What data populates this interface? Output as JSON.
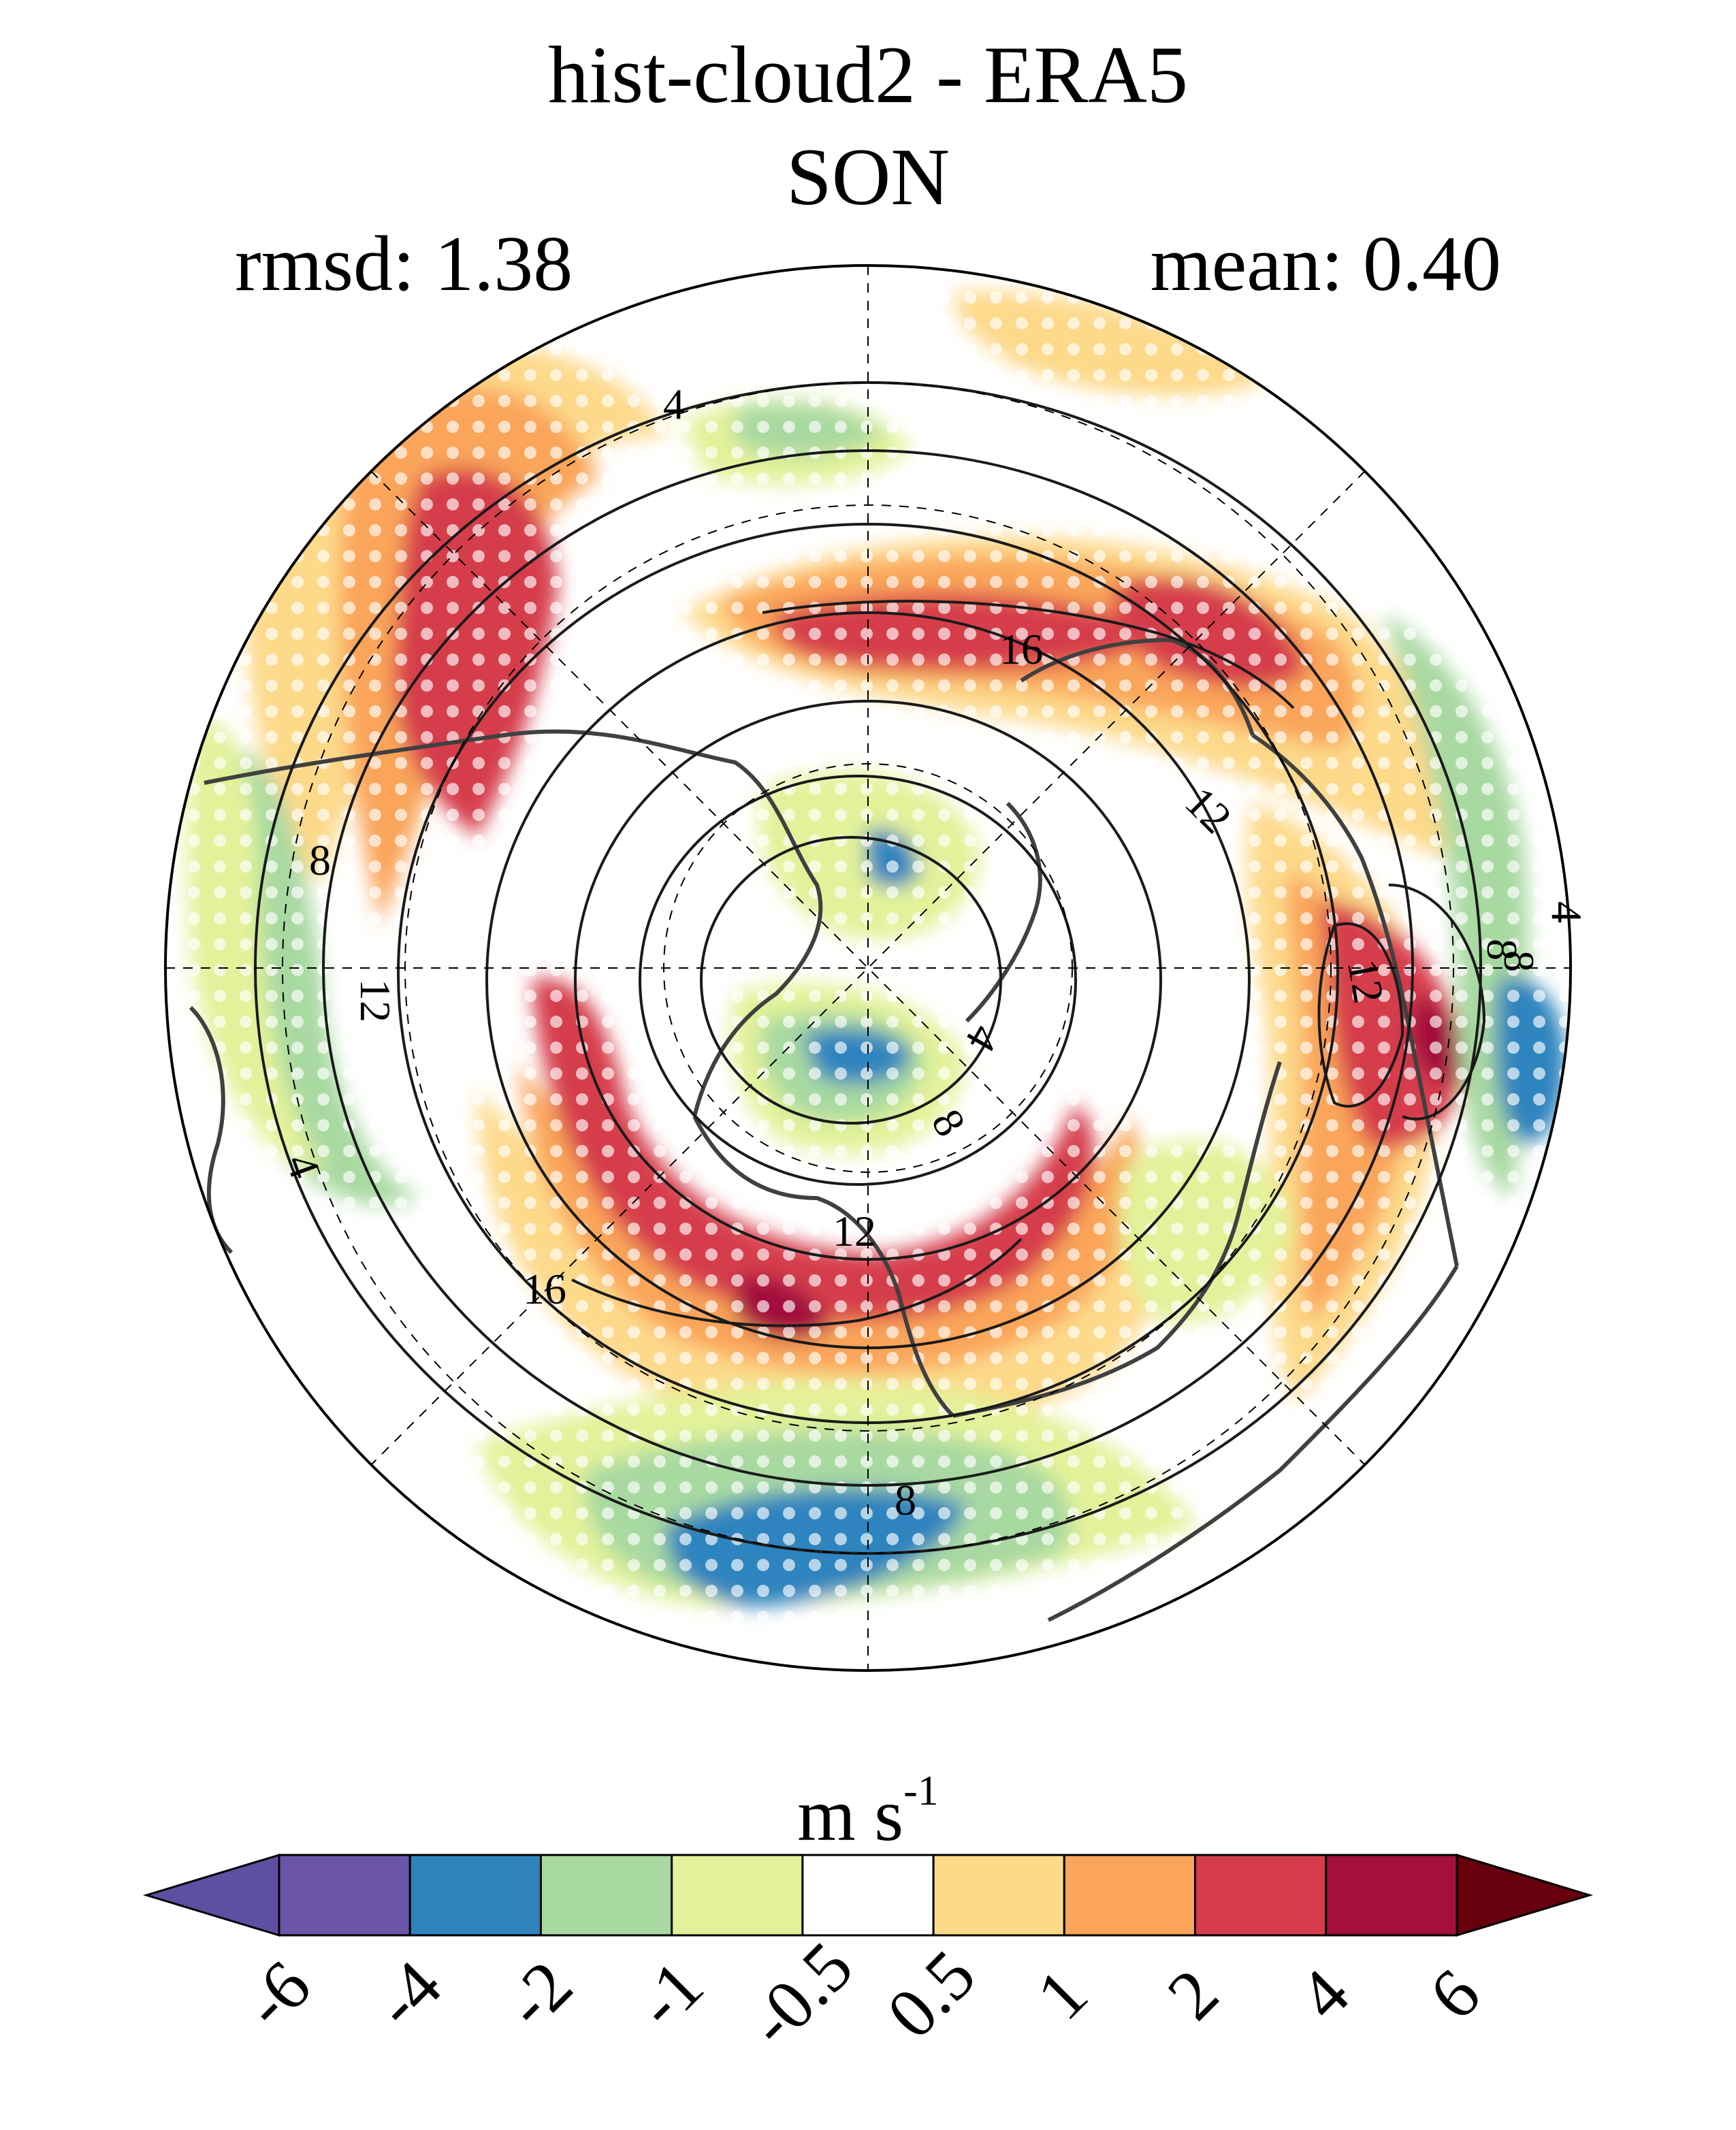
{
  "title": "hist-cloud2 - ERA5",
  "subtitle": "SON",
  "stats": {
    "rmsd": "rmsd: 1.38",
    "mean": "mean: 0.40"
  },
  "map": {
    "projection": "north polar stereographic",
    "stippling": "white dots (non-significant)",
    "contour_labels": [
      "4",
      "16",
      "12",
      "8",
      "12",
      "8",
      "4",
      "8",
      "8",
      "12",
      "12",
      "16",
      "4",
      "8",
      "4"
    ],
    "colors": {
      "blue": "#2f84be",
      "green": "#a8d9a1",
      "lightgreen": "#e3f29a",
      "yellow": "#fdd98a",
      "orange": "#faa55a",
      "red": "#d63c4b",
      "darkred": "#a3103e",
      "land": "#404040",
      "contour": "#1a1a1a"
    }
  },
  "colorbar": {
    "units_main": "m s",
    "units_exp": "-1",
    "colors": [
      "#5e4fa2",
      "#6a55a8",
      "#2f84be",
      "#a8d9a1",
      "#e3f29a",
      "#ffffff",
      "#fdd98a",
      "#faa55a",
      "#d63c4b",
      "#a3103e",
      "#67000d"
    ],
    "ticks": [
      "-6",
      "-4",
      "-2",
      "-1",
      "-0.5",
      "0.5",
      "1",
      "2",
      "4",
      "6"
    ]
  }
}
